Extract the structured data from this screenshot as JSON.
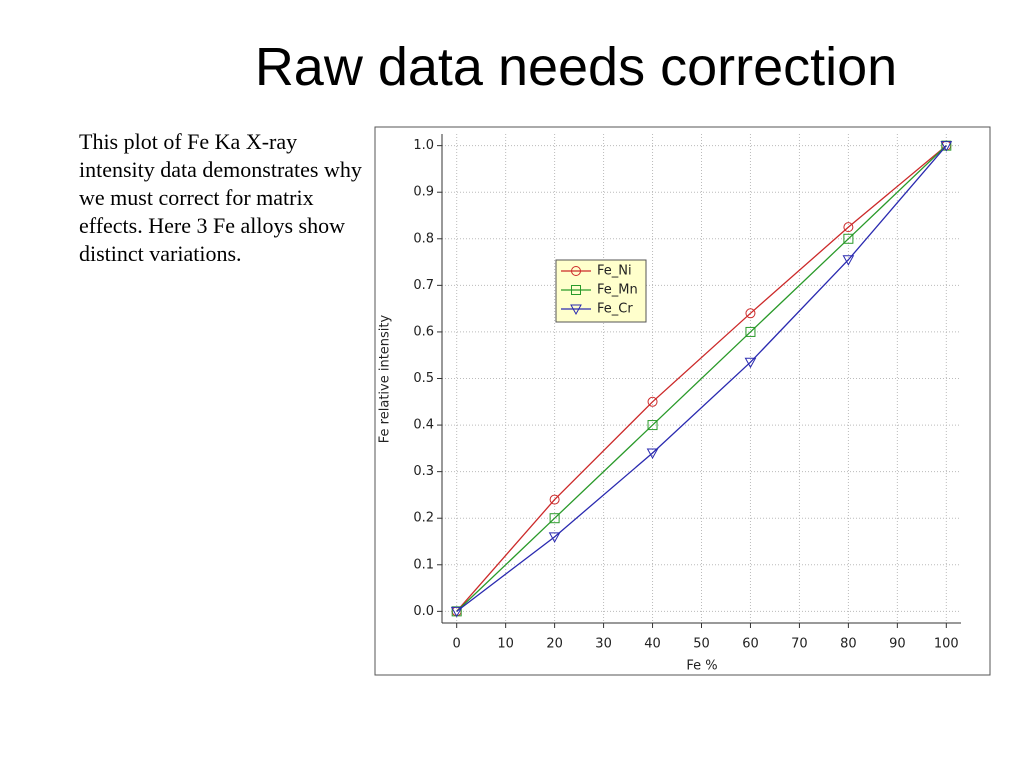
{
  "slide": {
    "title": "Raw data needs correction",
    "text": "This plot of Fe Ka X-ray intensity data demonstrates why we must correct for matrix effects. Here 3 Fe alloys show distinct variations."
  },
  "chart_data": {
    "type": "line",
    "xlabel": "Fe %",
    "ylabel": "Fe relative intensity",
    "x": [
      0,
      20,
      40,
      60,
      80,
      100
    ],
    "series": [
      {
        "name": "Fe_Ni",
        "color": "#cc2a2a",
        "marker": "circle",
        "values": [
          0,
          0.24,
          0.45,
          0.64,
          0.825,
          1.0
        ]
      },
      {
        "name": "Fe_Mn",
        "color": "#2a9a2a",
        "marker": "square",
        "values": [
          0,
          0.2,
          0.4,
          0.6,
          0.8,
          1.0
        ]
      },
      {
        "name": "Fe_Cr",
        "color": "#2a2ab0",
        "marker": "triangle-down",
        "values": [
          0,
          0.16,
          0.34,
          0.535,
          0.755,
          1.0
        ]
      }
    ],
    "xlim": [
      -3,
      103
    ],
    "ylim": [
      -0.025,
      1.025
    ],
    "xticks": [
      0,
      10,
      20,
      30,
      40,
      50,
      60,
      70,
      80,
      90,
      100
    ],
    "yticks": [
      {
        "value": 0,
        "label": "0.0"
      },
      0.1,
      0.2,
      0.3,
      0.4,
      0.5,
      0.6,
      0.7,
      0.8,
      0.9,
      {
        "value": 1,
        "label": "1.0"
      }
    ],
    "grid": true
  }
}
